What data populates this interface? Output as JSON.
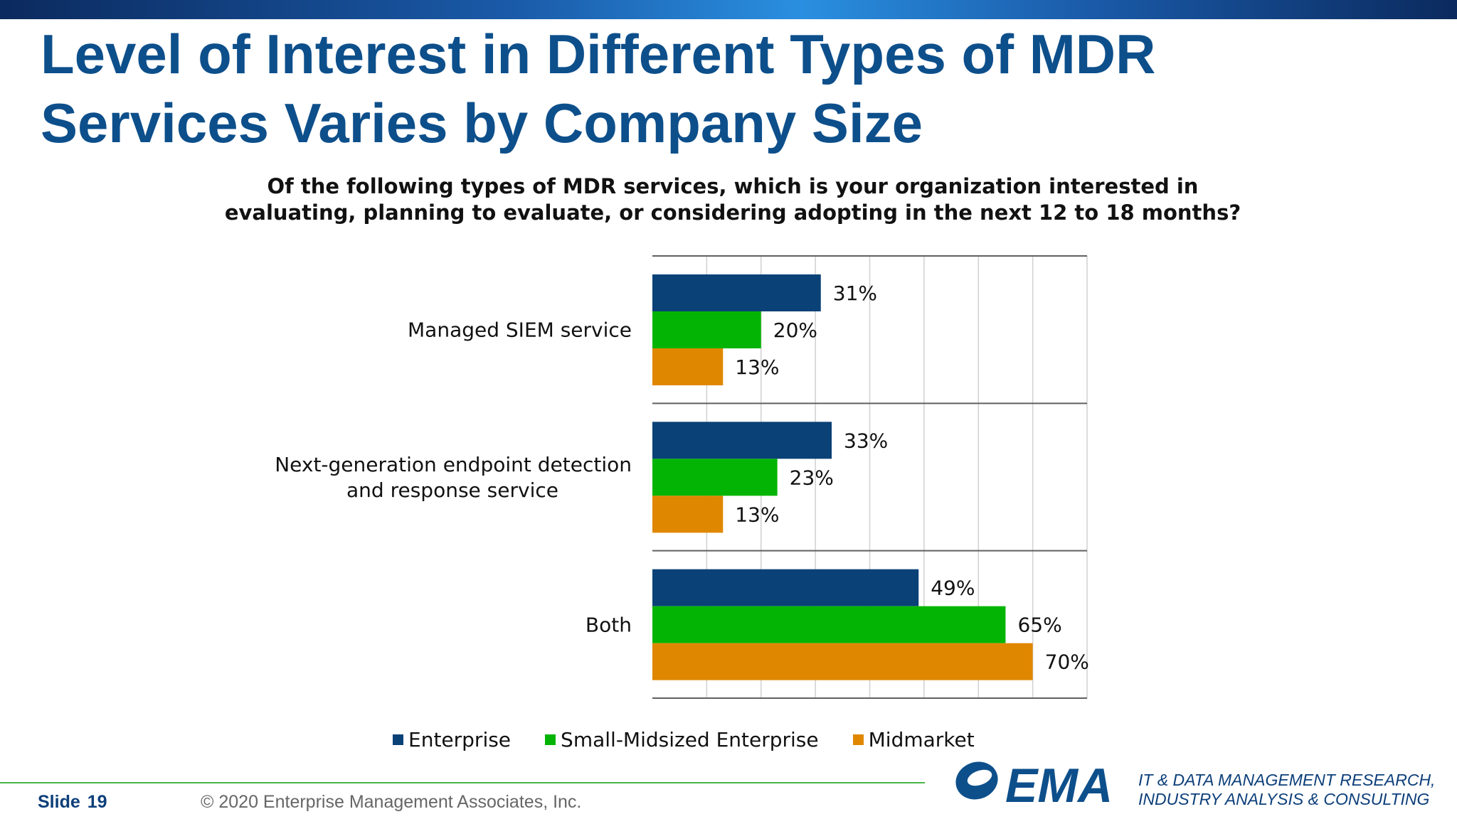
{
  "slide": {
    "title_line1": "Level of Interest in Different Types of MDR",
    "title_line2": "Services Varies by Company Size",
    "question_line1": "Of the following types of MDR services, which is your organization interested in",
    "question_line2": "evaluating, planning to evaluate, or considering adopting in the next 12 to 18 months?"
  },
  "chart_data": {
    "type": "bar",
    "orientation": "horizontal",
    "categories": [
      "Managed SIEM service",
      "Next-generation endpoint detection and response service",
      "Both"
    ],
    "category_label_lines": [
      [
        "Managed SIEM service"
      ],
      [
        "Next-generation endpoint detection",
        "and response service"
      ],
      [
        "Both"
      ]
    ],
    "series": [
      {
        "name": "Enterprise",
        "values": [
          31,
          33,
          49
        ],
        "color": "#0a4177"
      },
      {
        "name": "Small-Midsized Enterprise",
        "values": [
          20,
          23,
          65
        ],
        "color": "#04b404"
      },
      {
        "name": "Midmarket",
        "values": [
          13,
          13,
          70
        ],
        "color": "#e08700"
      }
    ],
    "value_suffix": "%",
    "xlim": [
      0,
      80
    ],
    "grid": true,
    "legend_position": "bottom"
  },
  "footer": {
    "slide_label": "Slide",
    "slide_number": "19",
    "copyright": "© 2020  Enterprise Management Associates, Inc.",
    "logo_text": "EMA",
    "tagline_line1": "IT & DATA MANAGEMENT RESEARCH,",
    "tagline_line2": "INDUSTRY ANALYSIS & CONSULTING"
  }
}
